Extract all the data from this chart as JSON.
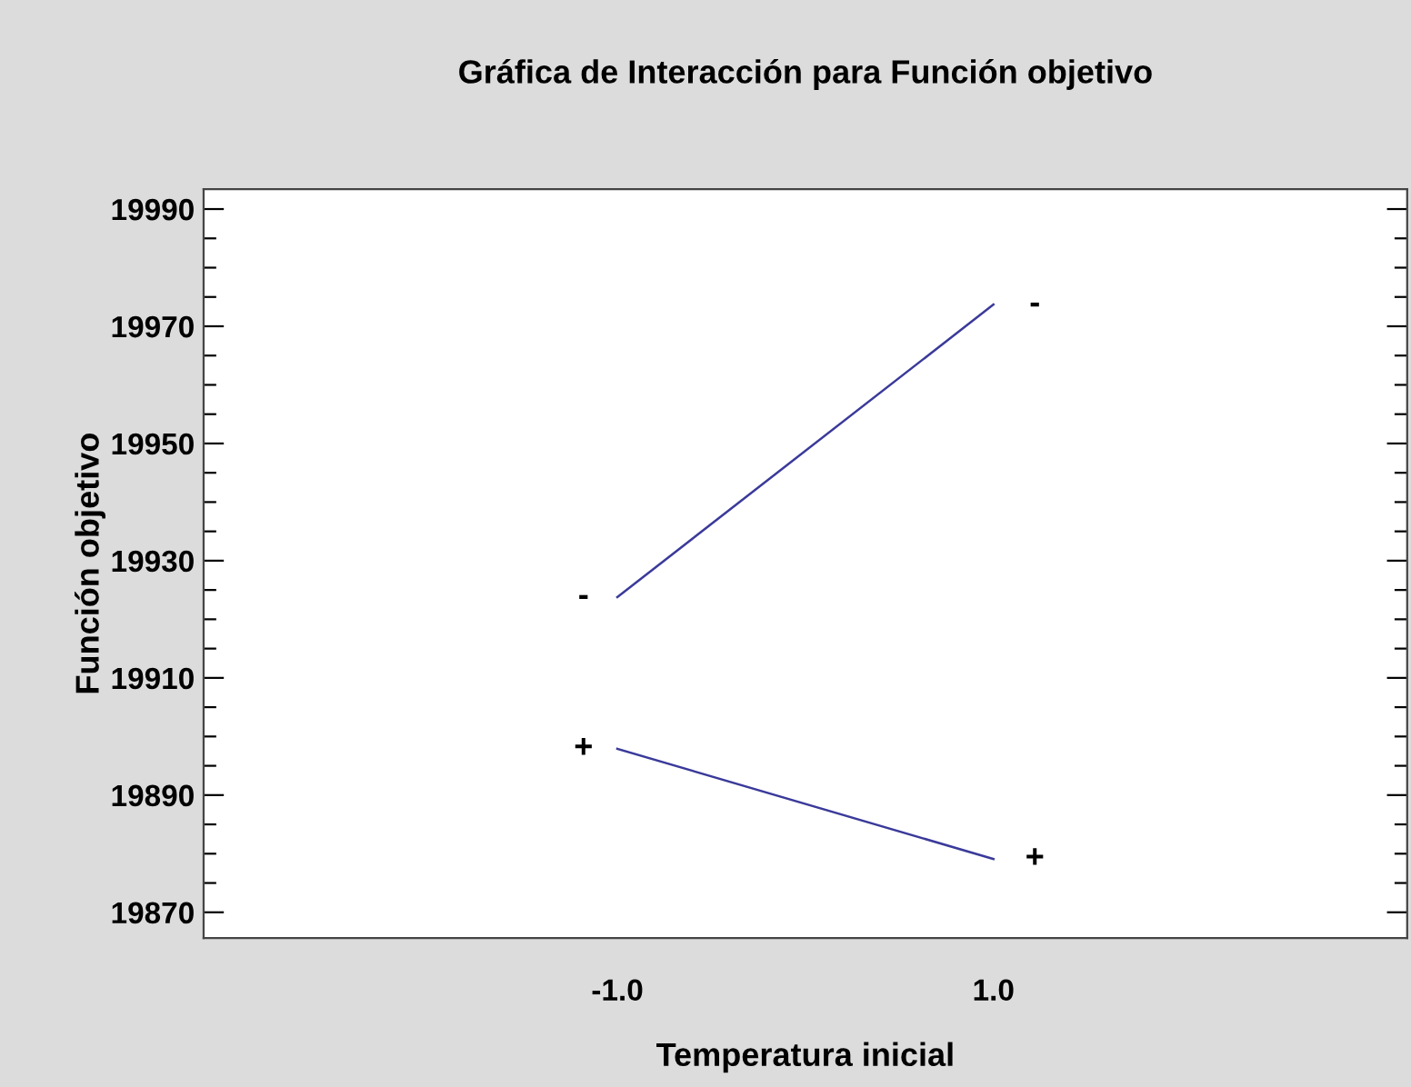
{
  "chart_data": {
    "type": "line",
    "title": "Gráfica de Interacción para Función objetivo",
    "xlabel": "Temperatura inicial",
    "ylabel": "Función objetivo",
    "x": [
      -1.0,
      1.0
    ],
    "series": [
      {
        "name": "-",
        "color": "#3a3a9a",
        "values": [
          19923.8,
          19973.7
        ]
      },
      {
        "name": "+",
        "color": "#3a3a9a",
        "values": [
          19897.9,
          19879.1
        ]
      }
    ],
    "xlim": [
      -3.2,
      3.2
    ],
    "xticks": [
      {
        "value": -1.0,
        "label": "-1.0"
      },
      {
        "value": 1.0,
        "label": "1.0"
      }
    ],
    "ylim": [
      19865.6,
      19993.4
    ],
    "yticks": [
      19870,
      {
        "value": 19875,
        "label": null
      },
      {
        "value": 19880,
        "label": null
      },
      {
        "value": 19885,
        "label": null
      },
      19890,
      {
        "value": 19895,
        "label": null
      },
      {
        "value": 19900,
        "label": null
      },
      {
        "value": 19905,
        "label": null
      },
      19910,
      {
        "value": 19915,
        "label": null
      },
      {
        "value": 19920,
        "label": null
      },
      {
        "value": 19925,
        "label": null
      },
      19930,
      {
        "value": 19935,
        "label": null
      },
      {
        "value": 19940,
        "label": null
      },
      {
        "value": 19945,
        "label": null
      },
      19950,
      {
        "value": 19955,
        "label": null
      },
      {
        "value": 19960,
        "label": null
      },
      {
        "value": 19965,
        "label": null
      },
      19970,
      {
        "value": 19975,
        "label": null
      },
      {
        "value": 19980,
        "label": null
      },
      {
        "value": 19985,
        "label": null
      },
      19990
    ],
    "grid": false,
    "legend": false,
    "marker": "none",
    "line_style": "solid"
  }
}
